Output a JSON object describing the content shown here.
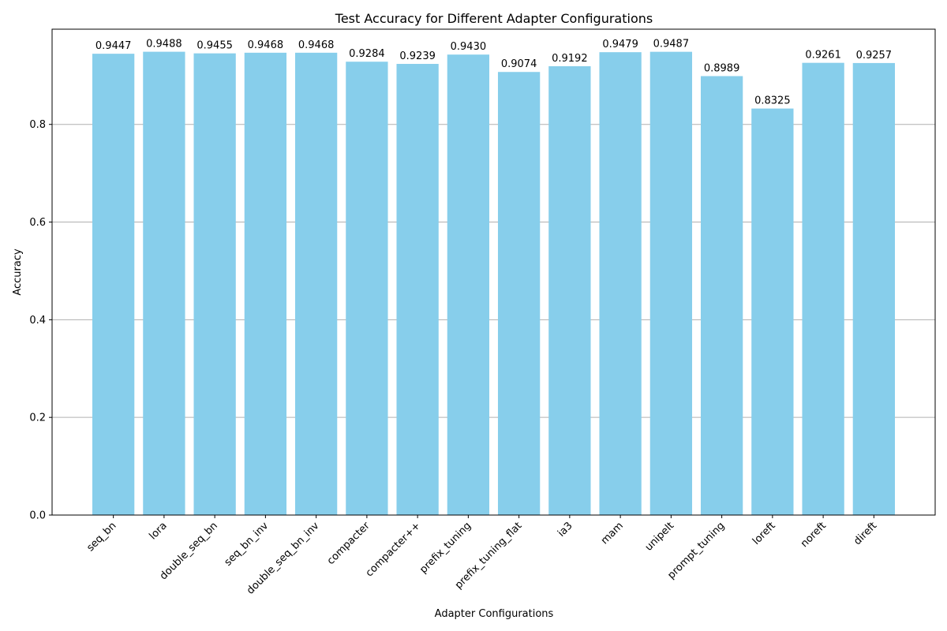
{
  "chart_data": {
    "type": "bar",
    "title": "Test Accuracy for Different Adapter Configurations",
    "xlabel": "Adapter Configurations",
    "ylabel": "Accuracy",
    "ylim": [
      0,
      0.995
    ],
    "yticks": [
      0.0,
      0.2,
      0.4,
      0.6,
      0.8
    ],
    "grid": "horizontal",
    "bar_color": "#87ceeb",
    "categories": [
      "seq_bn",
      "lora",
      "double_seq_bn",
      "seq_bn_inv",
      "double_seq_bn_inv",
      "compacter",
      "compacter++",
      "prefix_tuning",
      "prefix_tuning_flat",
      "ia3",
      "mam",
      "unipelt",
      "prompt_tuning",
      "loreft",
      "noreft",
      "direft"
    ],
    "values": [
      0.9447,
      0.9488,
      0.9455,
      0.9468,
      0.9468,
      0.9284,
      0.9239,
      0.943,
      0.9074,
      0.9192,
      0.9479,
      0.9487,
      0.8989,
      0.8325,
      0.9261,
      0.9257
    ],
    "value_labels": [
      "0.9447",
      "0.9488",
      "0.9455",
      "0.9468",
      "0.9468",
      "0.9284",
      "0.9239",
      "0.9430",
      "0.9074",
      "0.9192",
      "0.9479",
      "0.9487",
      "0.8989",
      "0.8325",
      "0.9261",
      "0.9257"
    ]
  }
}
